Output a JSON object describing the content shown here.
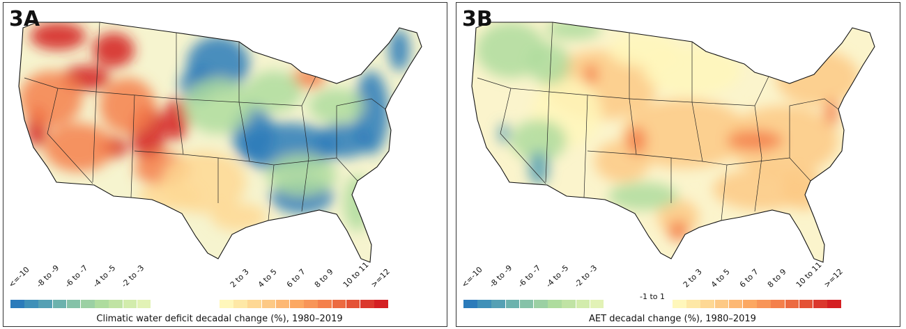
{
  "panels": [
    {
      "title": "3A",
      "legend_title": "Climatic water deficit decadal change (%), 1980–2019",
      "mid_label": ""
    },
    {
      "title": "3B",
      "legend_title": "AET decadal change (%), 1980–2019",
      "mid_label": "-1 to 1"
    }
  ],
  "legend": {
    "neg_labels": [
      "<=-10",
      "-8 to -9",
      "-6 to -7",
      "-4 to -5",
      "-2 to -3"
    ],
    "pos_labels": [
      "2 to 3",
      "4 to 5",
      "6 to 7",
      "8 to 9",
      "10 to 11",
      ">=12"
    ],
    "neg_colors": [
      "#2b7bba",
      "#3f90b8",
      "#55a0b4",
      "#6cb2ad",
      "#85c2a8",
      "#9bd0a3",
      "#aedc9e",
      "#c0e3a4",
      "#d2ecac",
      "#e2f2b6"
    ],
    "pos_colors": [
      "#fff7bb",
      "#fee8a6",
      "#fed894",
      "#fdc985",
      "#fdb874",
      "#fca862",
      "#f89558",
      "#f4804c",
      "#ec6a41",
      "#e45236",
      "#db382d",
      "#d41f22"
    ]
  }
}
